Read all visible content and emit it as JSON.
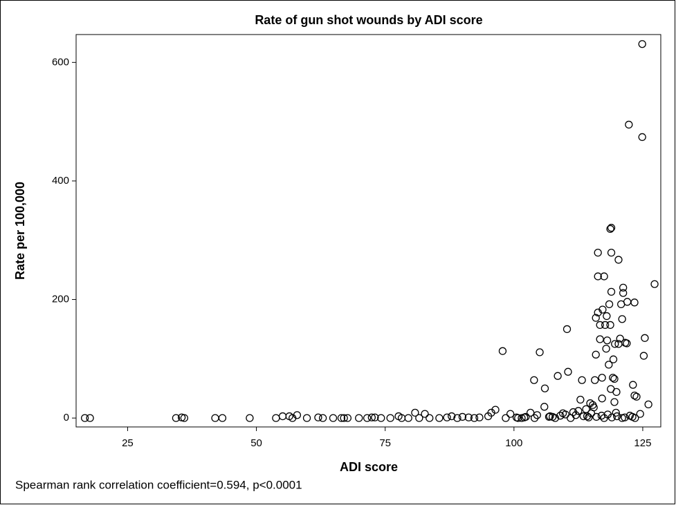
{
  "chart_data": {
    "type": "scatter",
    "title": "Rate of gun shot wounds by ADI score",
    "x_label": "ADI score",
    "y_label": "Rate per 100,000",
    "footnote": "Spearman rank correlation coefficient=0.594, p<0.0001",
    "color": "#000000",
    "xlim": [
      15,
      128.5
    ],
    "ylim": [
      -15,
      647
    ],
    "xticks": [
      25,
      50,
      75,
      100,
      125
    ],
    "yticks": [
      0,
      200,
      400,
      600
    ],
    "x": [
      16.7,
      17.7,
      34.4,
      35.5,
      36,
      42,
      43.4,
      48.7,
      53.8,
      55.1,
      56.4,
      57,
      57.9,
      59.8,
      62,
      62.9,
      64.9,
      66.5,
      67,
      67.7,
      69.9,
      71.5,
      72.4,
      73,
      74.2,
      76,
      77.6,
      78.2,
      79.5,
      80.8,
      81.6,
      82.7,
      83.6,
      85.5,
      87,
      87.9,
      89,
      90,
      91.2,
      92.3,
      93.3,
      95,
      95.6,
      96.4,
      97.8,
      98.4,
      99.3,
      100.5,
      101.5,
      102.3,
      103.2,
      103.9,
      105,
      105.9,
      106,
      107,
      108.5,
      109.5,
      110.3,
      110.5,
      111.5,
      112.9,
      113.2,
      114,
      114.8,
      115.3,
      115.7,
      115.9,
      115.9,
      116.3,
      116.3,
      116.3,
      116.7,
      116.7,
      117.1,
      117.1,
      117.2,
      117.5,
      117.7,
      117.9,
      118,
      118.1,
      118.4,
      118.5,
      118.7,
      118.9,
      118.7,
      118.8,
      118.9,
      118.9,
      119.2,
      119.3,
      119.5,
      119.5,
      119.6,
      119.9,
      120.3,
      120.3,
      120.6,
      120.8,
      121,
      121.2,
      121.2,
      121.6,
      121.9,
      122,
      122.3,
      123.1,
      123.4,
      123.4,
      123.8,
      124.9,
      124.9,
      125.2,
      125.4,
      126.1,
      127.3,
      100.8,
      102,
      104,
      106.8,
      108,
      109,
      111,
      112,
      113.5,
      114.5,
      115,
      116,
      117.5,
      118.2,
      119,
      120,
      121,
      122.5,
      123.5,
      124.5,
      104.5,
      107.5,
      110,
      112.5,
      114.2,
      115.5,
      117,
      119.8,
      121.5,
      123
    ],
    "y": [
      0,
      0,
      0,
      1,
      0,
      0,
      0,
      0,
      0,
      3,
      3,
      0,
      5,
      0,
      1,
      0,
      0,
      0,
      0,
      0,
      0,
      0,
      1,
      1,
      0,
      0,
      3,
      0,
      0,
      9,
      0,
      7,
      0,
      0,
      1,
      3,
      0,
      2,
      1,
      0,
      1,
      3,
      9,
      14,
      113,
      0,
      7,
      1,
      0,
      2,
      9,
      64,
      111,
      19,
      50,
      3,
      71,
      8,
      150,
      78,
      10,
      31,
      64,
      15,
      25,
      22,
      64,
      107,
      169,
      178,
      239,
      279,
      157,
      133,
      33,
      68,
      183,
      239,
      157,
      117,
      172,
      131,
      90,
      192,
      319,
      321,
      157,
      49,
      213,
      279,
      68,
      99,
      66,
      27,
      125,
      44,
      267,
      125,
      134,
      192,
      167,
      220,
      211,
      127,
      126,
      196,
      495,
      56,
      38,
      195,
      36,
      474,
      631,
      105,
      135,
      23,
      226,
      0,
      1,
      0,
      2,
      0,
      4,
      0,
      5,
      3,
      1,
      8,
      2,
      0,
      6,
      1,
      3,
      0,
      4,
      0,
      7,
      5,
      2,
      6,
      12,
      3,
      18,
      4,
      9,
      1,
      2
    ]
  }
}
